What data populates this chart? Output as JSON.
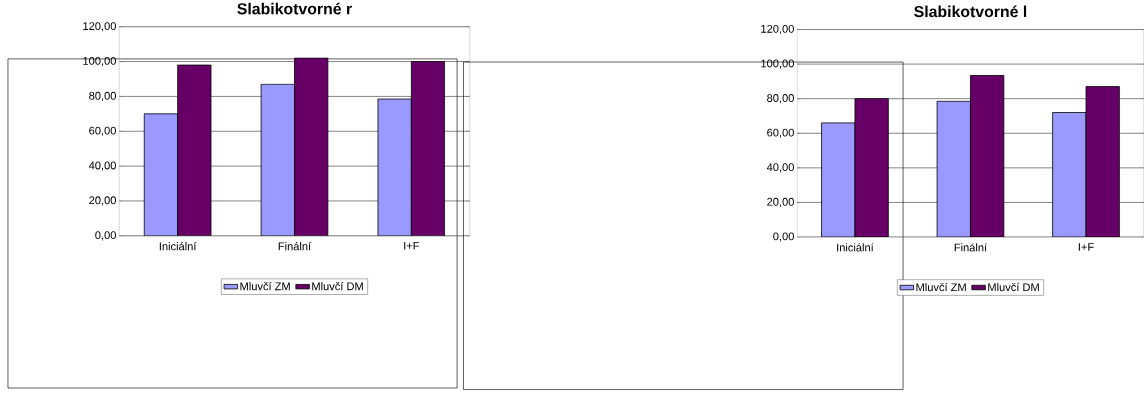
{
  "chart_data": [
    {
      "type": "bar",
      "title": "Slabikotvorné r",
      "categories": [
        "Iniciální",
        "Finální",
        "I+F"
      ],
      "series": [
        {
          "name": "Mluvčí ZM",
          "color": "#9999ff",
          "values": [
            70,
            87,
            78.5
          ]
        },
        {
          "name": "Mluvčí DM",
          "color": "#660066",
          "values": [
            98,
            102,
            100
          ]
        }
      ],
      "ylim": [
        0,
        120
      ],
      "yticks": [
        {
          "value": 0,
          "label": "0,00"
        },
        {
          "value": 20,
          "label": "20,00"
        },
        {
          "value": 40,
          "label": "40,00"
        },
        {
          "value": 60,
          "label": "60,00"
        },
        {
          "value": 80,
          "label": "80,00"
        },
        {
          "value": 100,
          "label": "100,00"
        },
        {
          "value": 120,
          "label": "120,00"
        }
      ],
      "grid": "y",
      "legend": "bottom"
    },
    {
      "type": "bar",
      "title": "Slabikotvorné l",
      "categories": [
        "Iniciální",
        "Finální",
        "I+F"
      ],
      "series": [
        {
          "name": "Mluvčí ZM",
          "color": "#9999ff",
          "values": [
            66,
            78.5,
            72
          ]
        },
        {
          "name": "Mluvčí DM",
          "color": "#660066",
          "values": [
            80,
            93.5,
            87
          ]
        }
      ],
      "ylim": [
        0,
        120
      ],
      "yticks": [
        {
          "value": 0,
          "label": "0,00"
        },
        {
          "value": 20,
          "label": "20,00"
        },
        {
          "value": 40,
          "label": "40,00"
        },
        {
          "value": 60,
          "label": "60,00"
        },
        {
          "value": 80,
          "label": "80,00"
        },
        {
          "value": 100,
          "label": "100,00"
        },
        {
          "value": 120,
          "label": "120,00"
        }
      ],
      "grid": "y",
      "legend": "bottom"
    }
  ]
}
